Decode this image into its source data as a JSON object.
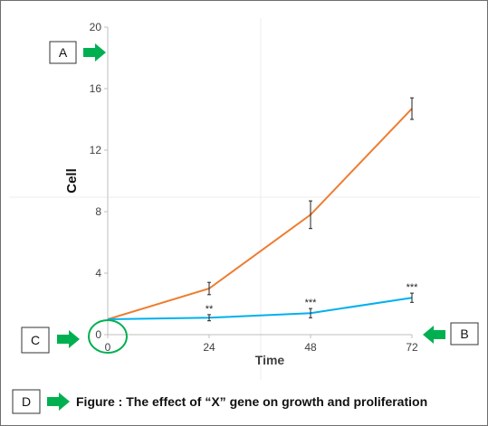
{
  "chart_data": {
    "type": "line",
    "x": [
      0,
      24,
      48,
      72
    ],
    "xlabel": "Time",
    "ylabel": "Cell",
    "yticks": [
      0,
      4,
      8,
      12,
      16,
      20
    ],
    "xticks": [
      0,
      24,
      48,
      72
    ],
    "ylim": [
      0,
      20
    ],
    "xlim": [
      0,
      72
    ],
    "grid": false,
    "series": [
      {
        "values": [
          1,
          3,
          7.8,
          14.7
        ],
        "errors": [
          0,
          0.4,
          0.9,
          0.7
        ],
        "color": "#ED7D31"
      },
      {
        "values": [
          1,
          1.1,
          1.4,
          2.4
        ],
        "errors": [
          0,
          0.2,
          0.3,
          0.3
        ],
        "color": "#00B0F0"
      }
    ],
    "significance": [
      {
        "x": 24,
        "label": "**"
      },
      {
        "x": 48,
        "label": "***"
      },
      {
        "x": 72,
        "label": "***"
      }
    ]
  },
  "markers": {
    "a": "A",
    "b": "B",
    "c": "C",
    "d": "D"
  },
  "caption": "Figure : The effect of “X” gene on growth and proliferation",
  "colors": {
    "arrow": "#00B050",
    "circle": "#00B050",
    "axis": "#bfbfbf"
  }
}
